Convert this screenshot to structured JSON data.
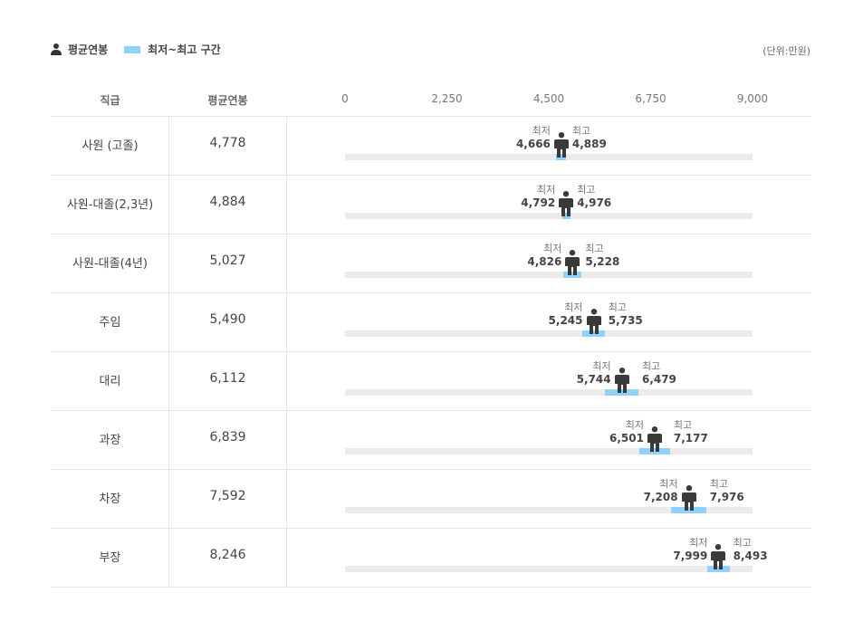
{
  "legend": {
    "avg_label": "평균연봉",
    "range_label": "최저~최고 구간",
    "avg_icon": "person-icon",
    "range_color": "#8fd1ff"
  },
  "unit_label": "(단위:만원)",
  "headers": {
    "rank": "직급",
    "avg": "평균연봉"
  },
  "labels": {
    "min": "최저",
    "max": "최고"
  },
  "chart_data": {
    "type": "range-dot",
    "xlim": [
      0,
      9000
    ],
    "ticks": [
      0,
      2250,
      4500,
      6750,
      9000
    ],
    "tick_labels": [
      "0",
      "2,250",
      "4,500",
      "6,750",
      "9,000"
    ],
    "rows": [
      {
        "rank": "사원 (고졸)",
        "avg": 4778,
        "avg_label": "4,778",
        "min": 4666,
        "min_label": "4,666",
        "max": 4889,
        "max_label": "4,889"
      },
      {
        "rank": "사원-대졸(2,3년)",
        "avg": 4884,
        "avg_label": "4,884",
        "min": 4792,
        "min_label": "4,792",
        "max": 4976,
        "max_label": "4,976"
      },
      {
        "rank": "사원-대졸(4년)",
        "avg": 5027,
        "avg_label": "5,027",
        "min": 4826,
        "min_label": "4,826",
        "max": 5228,
        "max_label": "5,228"
      },
      {
        "rank": "주임",
        "avg": 5490,
        "avg_label": "5,490",
        "min": 5245,
        "min_label": "5,245",
        "max": 5735,
        "max_label": "5,735"
      },
      {
        "rank": "대리",
        "avg": 6112,
        "avg_label": "6,112",
        "min": 5744,
        "min_label": "5,744",
        "max": 6479,
        "max_label": "6,479"
      },
      {
        "rank": "과장",
        "avg": 6839,
        "avg_label": "6,839",
        "min": 6501,
        "min_label": "6,501",
        "max": 7177,
        "max_label": "7,177"
      },
      {
        "rank": "차장",
        "avg": 7592,
        "avg_label": "7,592",
        "min": 7208,
        "min_label": "7,208",
        "max": 7976,
        "max_label": "7,976"
      },
      {
        "rank": "부장",
        "avg": 8246,
        "avg_label": "8,246",
        "min": 7999,
        "min_label": "7,999",
        "max": 8493,
        "max_label": "8,493"
      }
    ]
  }
}
